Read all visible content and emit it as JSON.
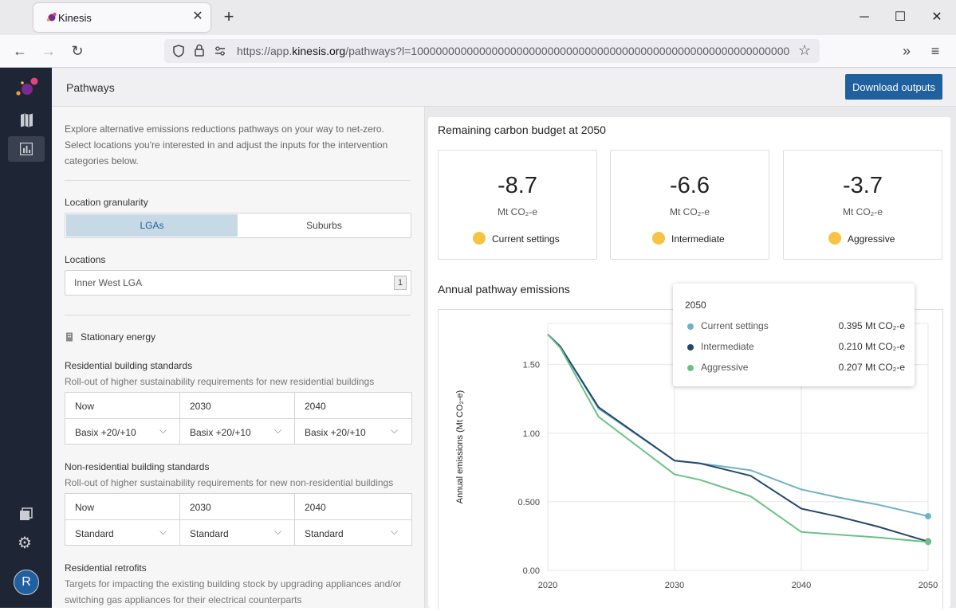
{
  "browser": {
    "tab_title": "Kinesis",
    "url_prefix": "https://app.",
    "url_domain": "kinesis.org",
    "url_rest": "/pathways?l=1000000000000000000000000000000000000000000000000000000000000"
  },
  "app": {
    "page_title": "Pathways",
    "download_label": "Download outputs",
    "user_initial": "R"
  },
  "intro": "Explore alternative emissions reductions pathways on your way to net-zero. Select locations you're interested in and adjust the inputs for the intervention categories below.",
  "granularity": {
    "label": "Location granularity",
    "options": [
      "LGAs",
      "Suburbs"
    ],
    "selected": "LGAs"
  },
  "locations": {
    "label": "Locations",
    "value": "Inner West LGA",
    "count": "1"
  },
  "stationary": {
    "title": "Stationary energy"
  },
  "residential": {
    "title": "Residential building standards",
    "desc": "Roll-out of higher sustainability requirements for new residential buildings",
    "cols": [
      {
        "year": "Now",
        "value": "Basix +20/+10"
      },
      {
        "year": "2030",
        "value": "Basix +20/+10"
      },
      {
        "year": "2040",
        "value": "Basix +20/+10"
      }
    ]
  },
  "nonresidential": {
    "title": "Non-residential building standards",
    "desc": "Roll-out of higher sustainability requirements for new non-residential buildings",
    "cols": [
      {
        "year": "Now",
        "value": "Standard"
      },
      {
        "year": "2030",
        "value": "Standard"
      },
      {
        "year": "2040",
        "value": "Standard"
      }
    ]
  },
  "retrofits": {
    "title": "Residential retrofits",
    "desc": "Targets for impacting the existing building stock by upgrading appliances and/or switching gas appliances for their electrical counterparts"
  },
  "budget": {
    "title": "Remaining carbon budget at 2050",
    "cards": [
      {
        "value": "-8.7",
        "unit": "Mt CO₂-e",
        "label": "Current settings"
      },
      {
        "value": "-6.6",
        "unit": "Mt CO₂-e",
        "label": "Intermediate"
      },
      {
        "value": "-3.7",
        "unit": "Mt CO₂-e",
        "label": "Aggressive"
      }
    ],
    "dot_color": "#f6c342"
  },
  "annual_title": "Annual pathway emissions",
  "tooltip": {
    "year": "2050",
    "rows": [
      {
        "name": "Current settings",
        "value": "0.395 Mt CO₂-e",
        "color": "#6fb3c6"
      },
      {
        "name": "Intermediate",
        "value": "0.210 Mt CO₂-e",
        "color": "#25466d"
      },
      {
        "name": "Aggressive",
        "value": "0.207 Mt CO₂-e",
        "color": "#6cc286"
      }
    ]
  },
  "chart_data": {
    "type": "line",
    "ylabel": "Annual emissions (Mt CO₂-e)",
    "xlim": [
      2020,
      2050
    ],
    "ylim": [
      0,
      1.8
    ],
    "xticks": [
      2020,
      2030,
      2040,
      2050
    ],
    "xtick_labels": [
      "2020",
      "2030",
      "2040",
      "2050"
    ],
    "yticks": [
      0,
      0.5,
      1.0,
      1.5
    ],
    "ytick_labels": [
      "0.00",
      "0.500",
      "1.00",
      "1.50"
    ],
    "grid": true,
    "series": [
      {
        "name": "Current settings",
        "color": "#6fb3c6",
        "x": [
          2020,
          2021,
          2024,
          2030,
          2032,
          2036,
          2040,
          2043,
          2046,
          2050
        ],
        "y": [
          1.72,
          1.63,
          1.18,
          0.8,
          0.78,
          0.73,
          0.59,
          0.53,
          0.48,
          0.395
        ]
      },
      {
        "name": "Intermediate",
        "color": "#25466d",
        "x": [
          2020,
          2021,
          2024,
          2030,
          2032,
          2036,
          2040,
          2043,
          2046,
          2050
        ],
        "y": [
          1.72,
          1.63,
          1.19,
          0.8,
          0.78,
          0.69,
          0.45,
          0.39,
          0.32,
          0.21
        ]
      },
      {
        "name": "Aggressive",
        "color": "#6cc286",
        "x": [
          2020,
          2021,
          2024,
          2030,
          2032,
          2036,
          2040,
          2043,
          2046,
          2050
        ],
        "y": [
          1.72,
          1.62,
          1.12,
          0.7,
          0.66,
          0.54,
          0.28,
          0.26,
          0.24,
          0.207
        ]
      }
    ]
  }
}
